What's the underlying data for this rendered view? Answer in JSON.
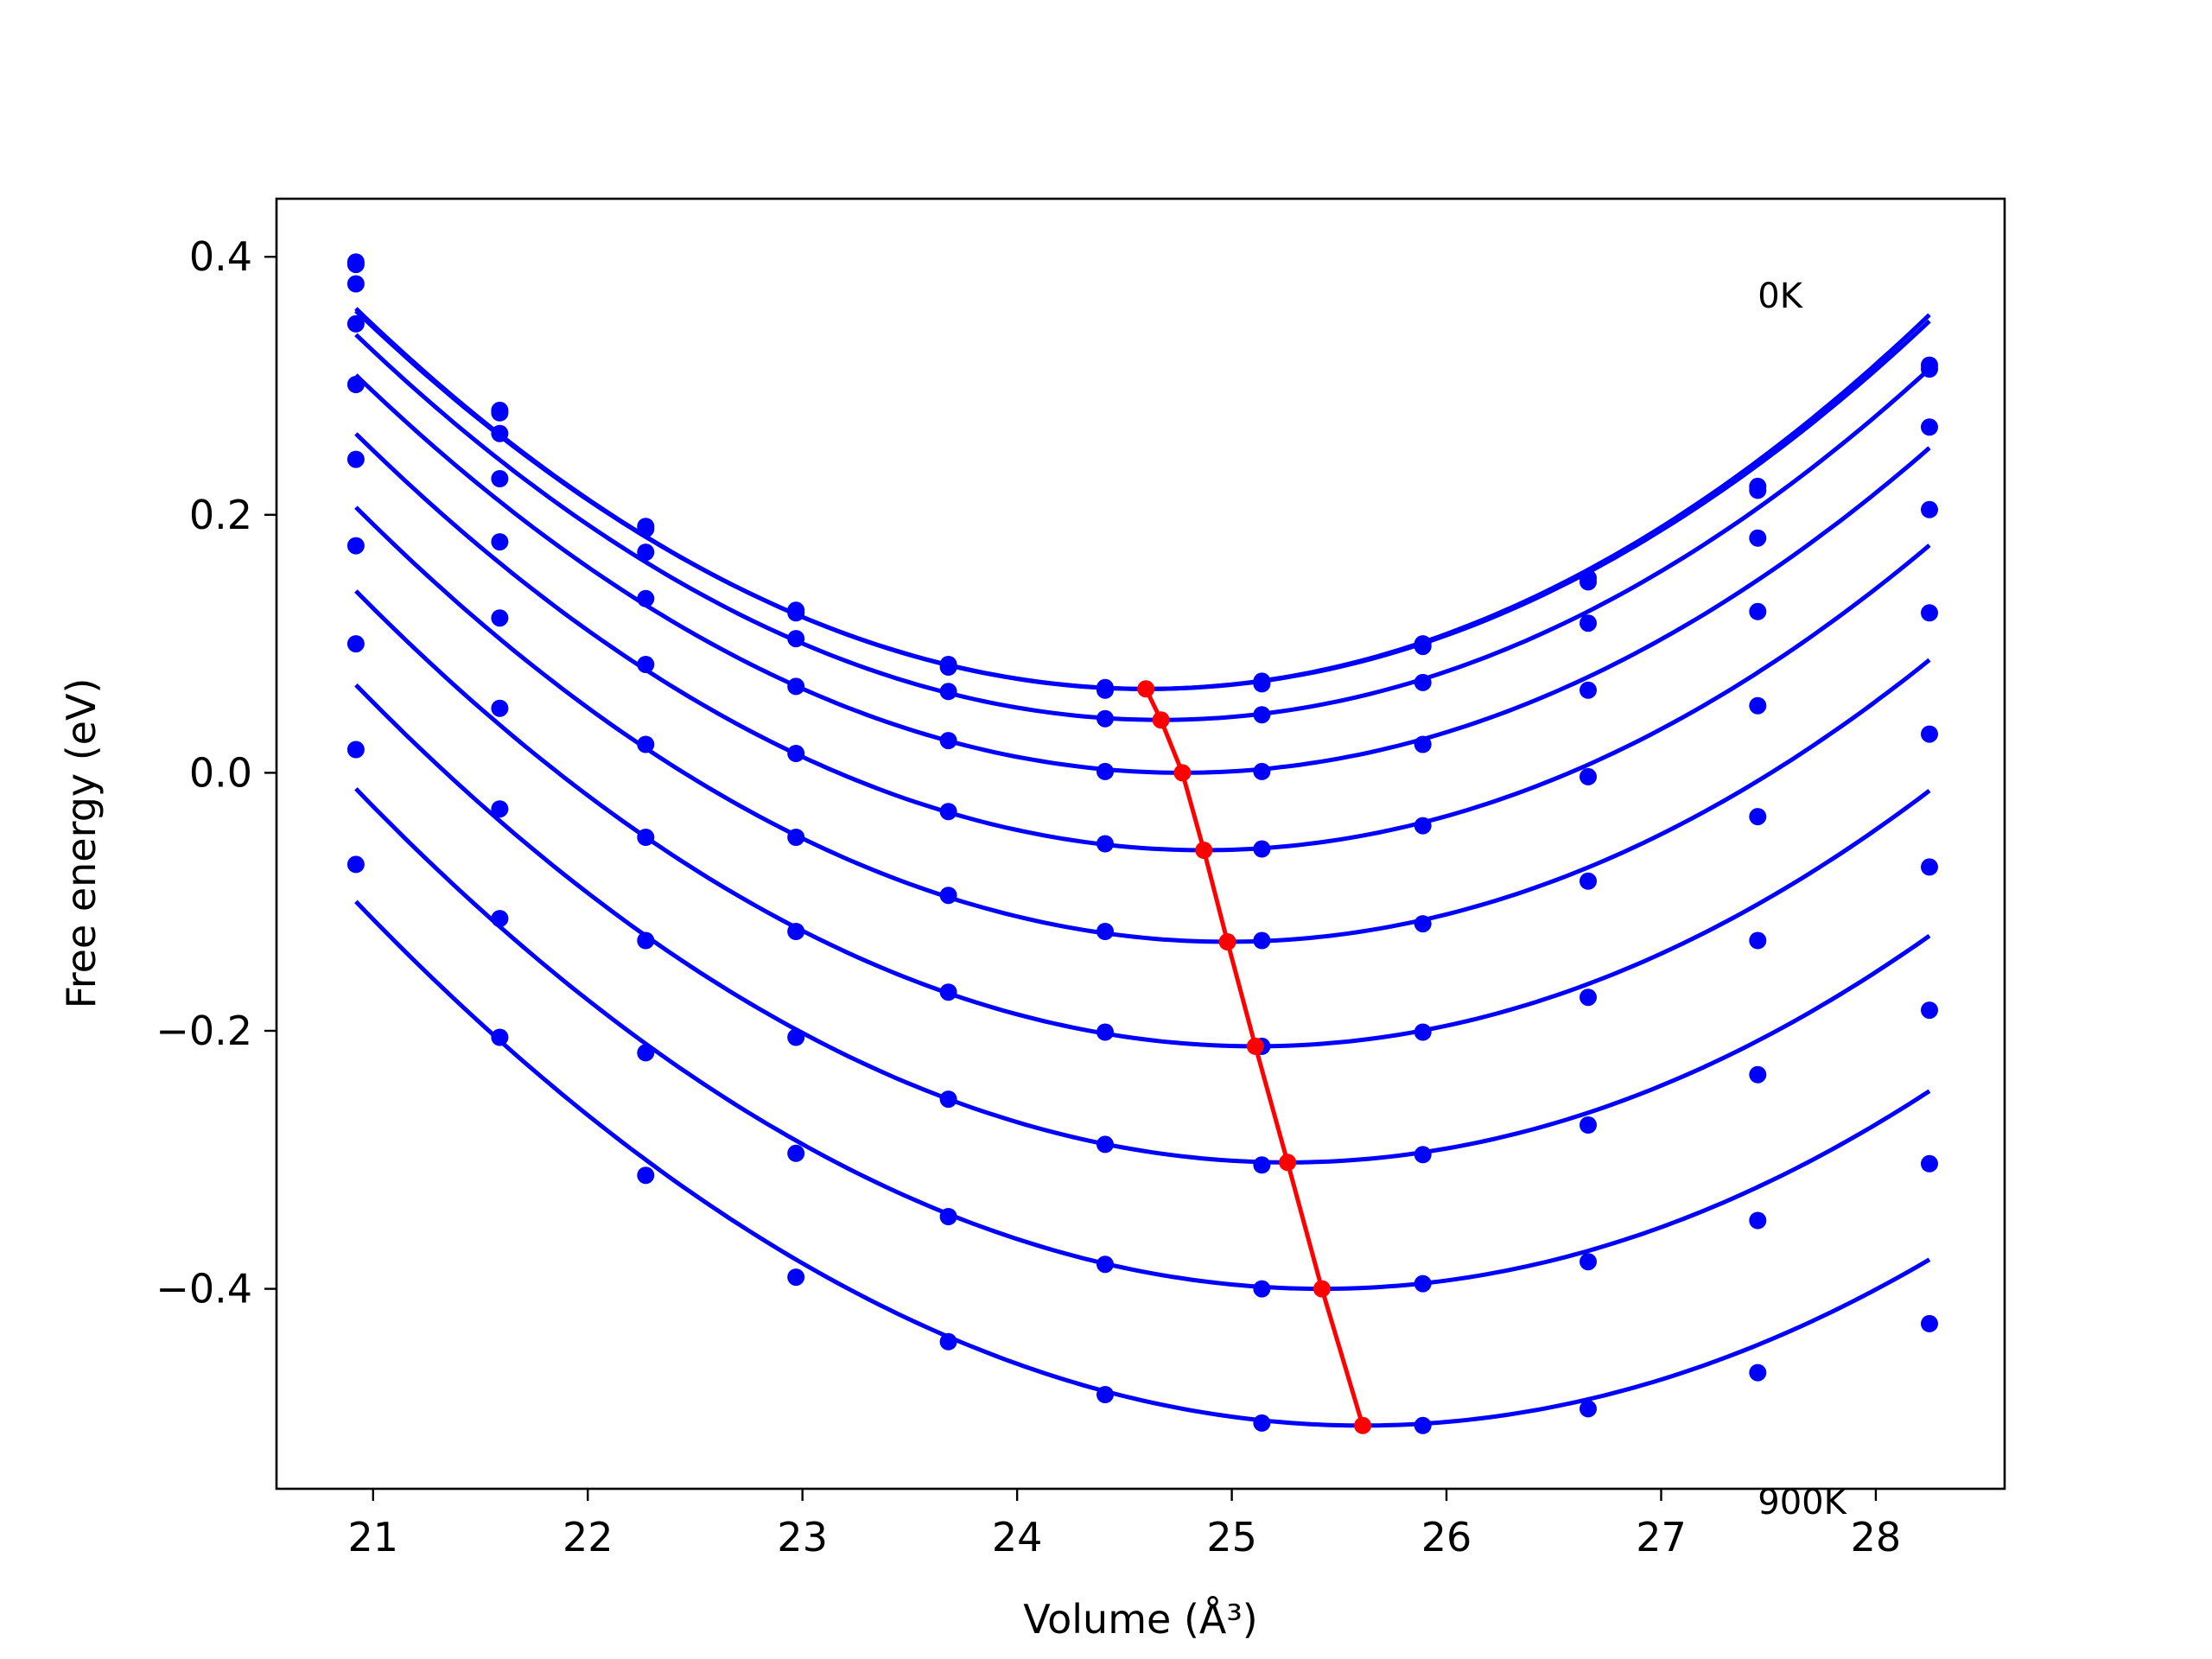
{
  "chart_data": {
    "type": "line",
    "xlabel": "Volume (Å³)",
    "ylabel": "Free energy (eV)",
    "xlim": [
      20.55,
      28.6
    ],
    "ylim": [
      -0.555,
      0.445
    ],
    "xticks": [
      21,
      22,
      23,
      24,
      25,
      26,
      27,
      28
    ],
    "yticks": [
      -0.4,
      -0.2,
      0.0,
      0.2,
      0.4
    ],
    "ytick_labels": [
      "−0.4",
      "−0.2",
      "0.0",
      "0.2",
      "0.4"
    ],
    "grid": false,
    "annotations": [
      {
        "text": "0K",
        "x": 27.45,
        "y": 0.37
      },
      {
        "text": "900K",
        "x": 27.45,
        "y": -0.565
      }
    ],
    "volumes": [
      20.92,
      21.59,
      22.27,
      22.97,
      23.68,
      24.41,
      25.14,
      25.89,
      26.66,
      27.45,
      28.25
    ],
    "series_color": "#0000ff",
    "series": [
      {
        "minimum": [
          24.6,
          0.065
        ],
        "values": [
          0.396,
          0.281,
          0.191,
          0.126,
          0.084,
          0.066,
          0.071,
          0.1,
          0.151,
          0.222,
          0.316
        ]
      },
      {
        "minimum": [
          24.61,
          0.065
        ],
        "values": [
          0.394,
          0.279,
          0.189,
          0.124,
          0.082,
          0.064,
          0.069,
          0.098,
          0.148,
          0.219,
          0.313
        ]
      },
      {
        "minimum": [
          24.67,
          0.041
        ],
        "values": [
          0.379,
          0.263,
          0.171,
          0.104,
          0.063,
          0.042,
          0.045,
          0.07,
          0.116,
          0.182,
          0.268
        ]
      },
      {
        "minimum": [
          24.77,
          0.0
        ],
        "values": [
          0.348,
          0.228,
          0.135,
          0.067,
          0.025,
          0.001,
          0.001,
          0.022,
          0.064,
          0.125,
          0.204
        ]
      },
      {
        "minimum": [
          24.87,
          -0.06
        ],
        "values": [
          0.301,
          0.179,
          0.084,
          0.015,
          -0.03,
          -0.055,
          -0.059,
          -0.041,
          -0.003,
          0.052,
          0.124
        ]
      },
      {
        "minimum": [
          24.98,
          -0.131
        ],
        "values": [
          0.243,
          0.12,
          0.022,
          -0.05,
          -0.095,
          -0.123,
          -0.13,
          -0.117,
          -0.084,
          -0.034,
          0.03
        ]
      },
      {
        "minimum": [
          25.11,
          -0.212
        ],
        "values": [
          0.176,
          0.05,
          -0.05,
          -0.123,
          -0.17,
          -0.201,
          -0.212,
          -0.201,
          -0.174,
          -0.13,
          -0.073
        ]
      },
      {
        "minimum": [
          25.26,
          -0.302
        ],
        "values": [
          0.1,
          -0.028,
          -0.13,
          -0.205,
          -0.253,
          -0.288,
          -0.304,
          -0.296,
          -0.273,
          -0.234,
          -0.184
        ]
      },
      {
        "minimum": [
          25.42,
          -0.4
        ],
        "values": [
          0.018,
          -0.113,
          -0.217,
          -0.295,
          -0.344,
          -0.381,
          -0.4,
          -0.396,
          -0.379,
          -0.347,
          -0.303
        ]
      },
      {
        "minimum": [
          25.61,
          -0.506
        ],
        "values": [
          -0.071,
          -0.205,
          -0.312,
          -0.391,
          -0.441,
          -0.482,
          -0.504,
          -0.506,
          -0.493,
          -0.465,
          -0.427
        ]
      }
    ],
    "minima_line": {
      "color": "#ff0000",
      "x": [
        24.6,
        24.67,
        24.77,
        24.87,
        24.98,
        25.11,
        25.26,
        25.42,
        25.61
      ],
      "y": [
        0.065,
        0.041,
        0.0,
        -0.06,
        -0.131,
        -0.212,
        -0.302,
        -0.4,
        -0.506
      ]
    }
  }
}
